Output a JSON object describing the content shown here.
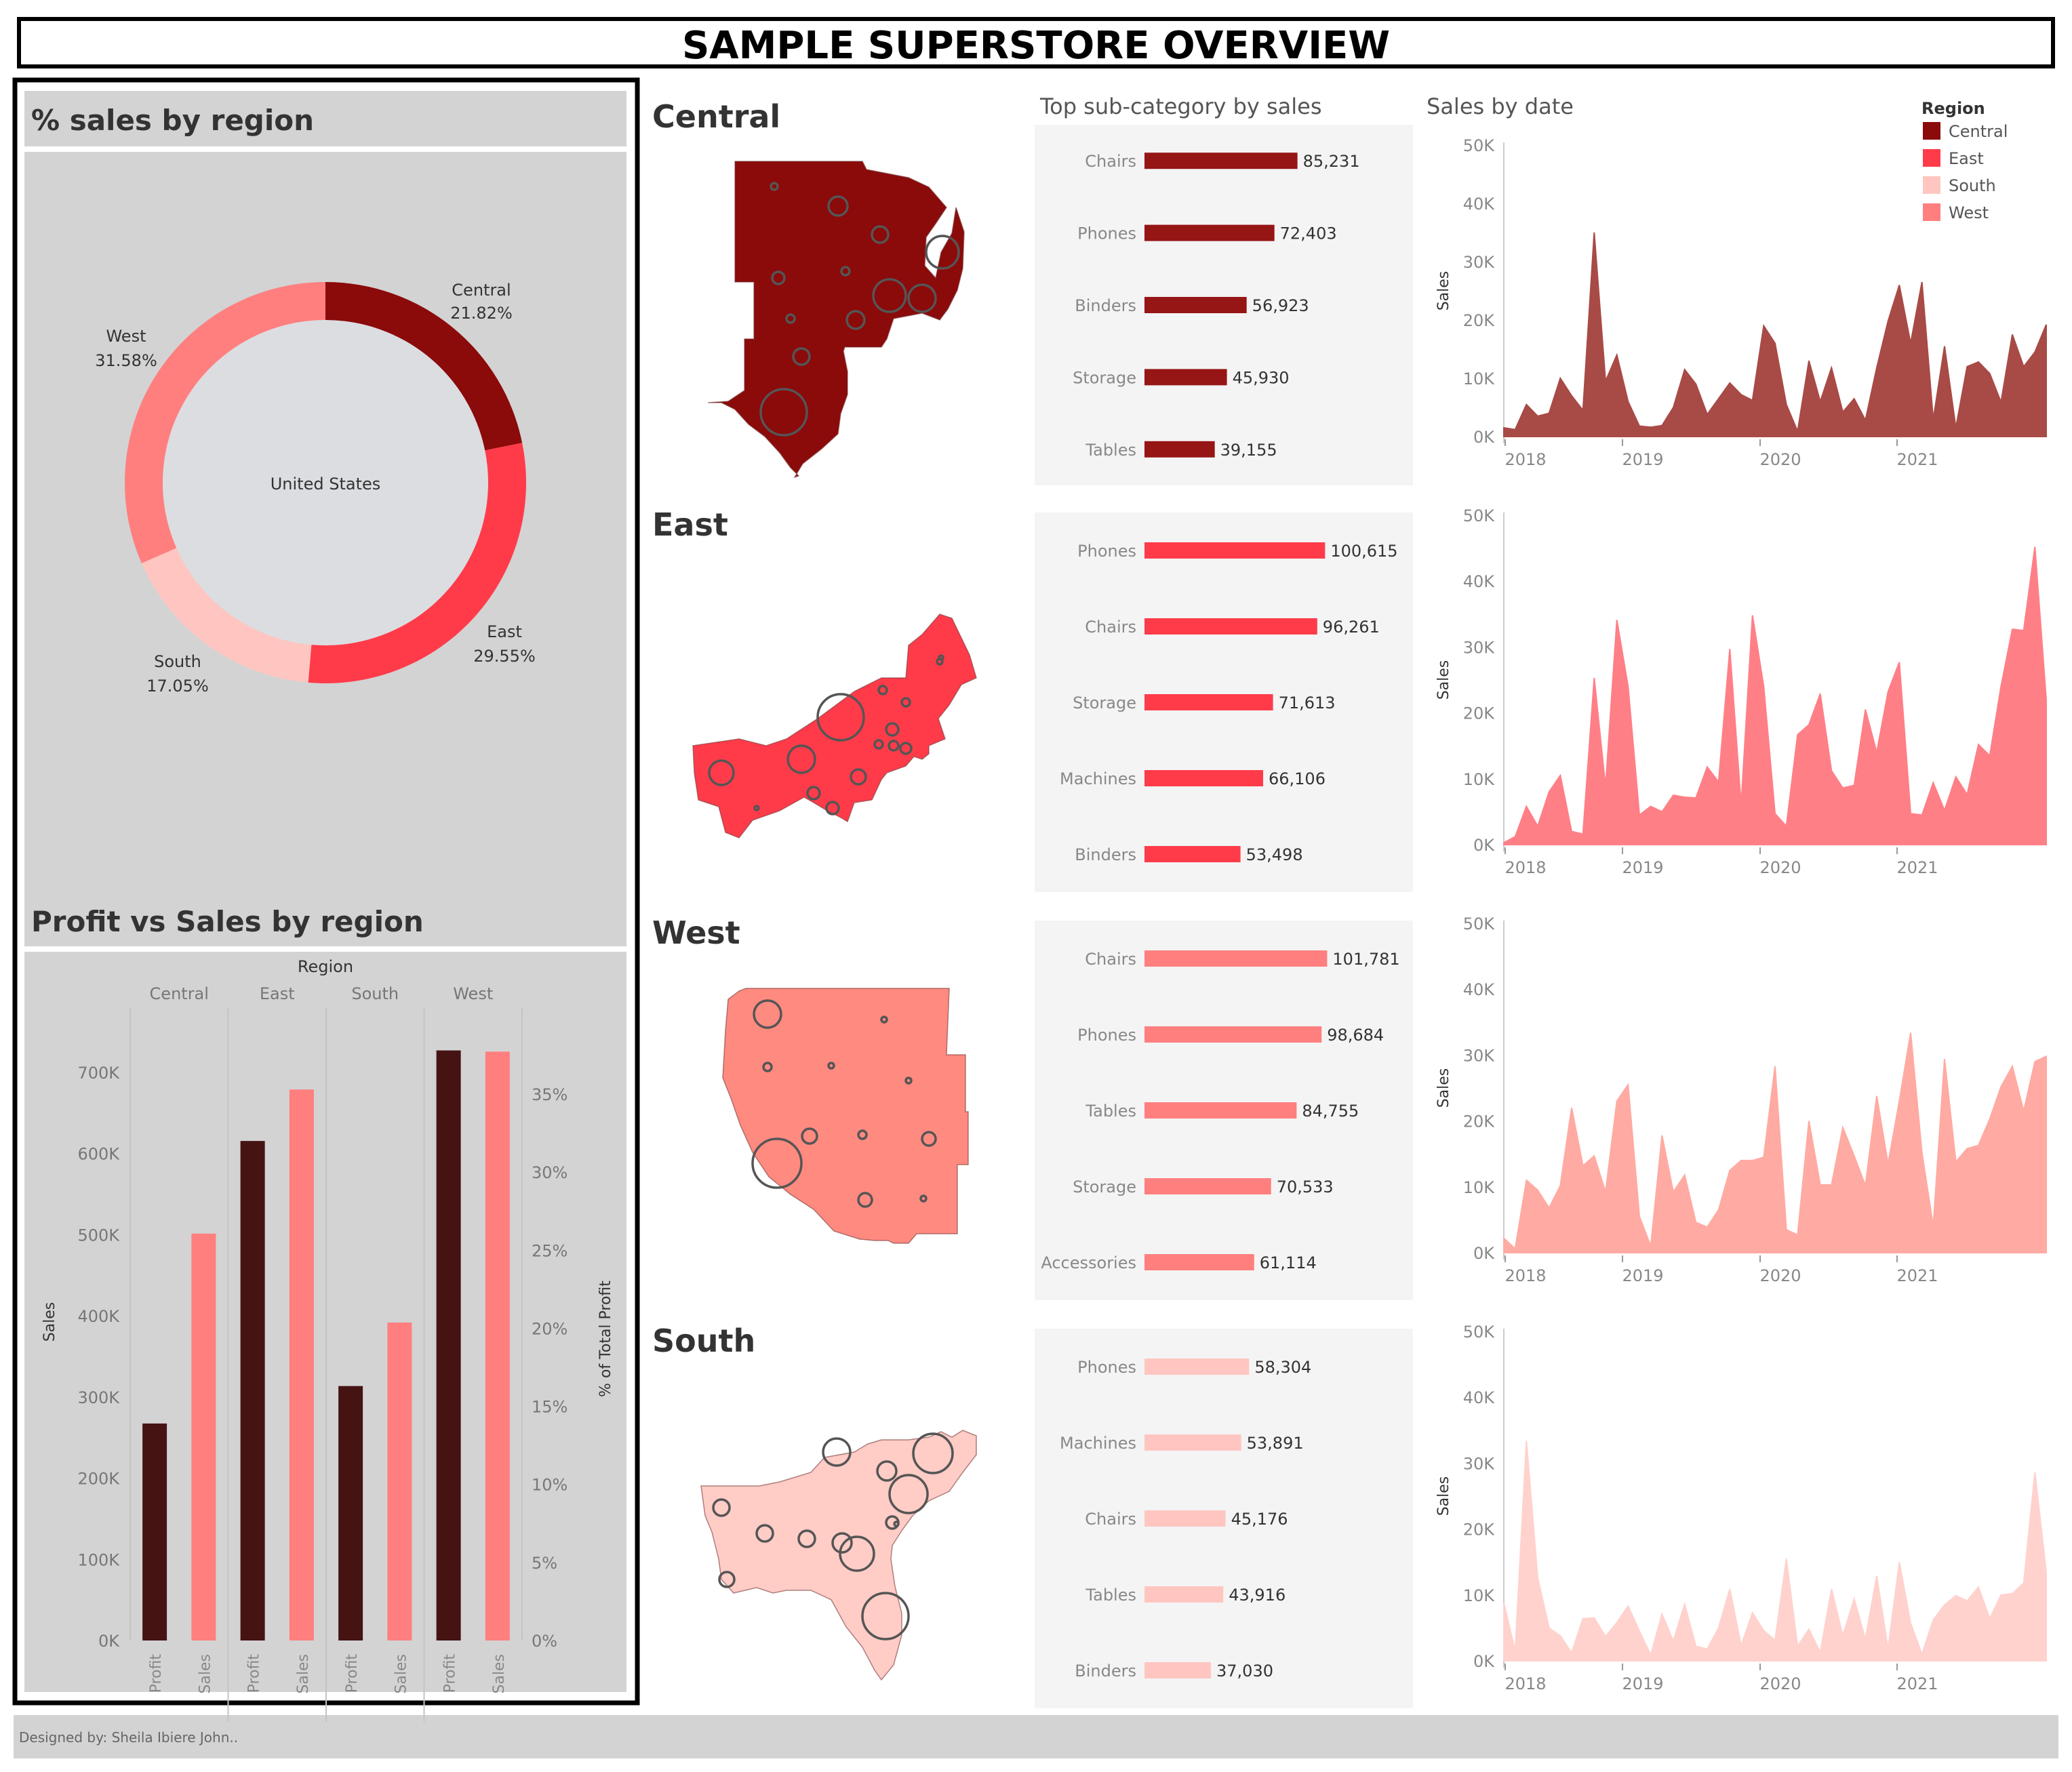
{
  "header": {
    "title": "SAMPLE SUPERSTORE OVERVIEW"
  },
  "footer": {
    "credit": "Designed by: Sheila Ibiere John.."
  },
  "colors": {
    "Central": "#8b0a0a",
    "East": "#ff3b4a",
    "South": "#ffc6c1",
    "West": "#ff7f7f",
    "profit_bar": "#461313",
    "sales_bar": "#ff7f7f"
  },
  "panels": {
    "donut_title": "% sales by region",
    "profit_sales_title": "Profit vs Sales by region",
    "sub_category_title": "Top sub-category by sales",
    "sales_by_date_title": "Sales by date"
  },
  "legend": {
    "title": "Region",
    "items": [
      "Central",
      "East",
      "South",
      "West"
    ]
  },
  "region_sections": [
    "Central",
    "East",
    "West",
    "South"
  ],
  "chart_data": [
    {
      "type": "pie",
      "title": "% sales by region",
      "center_label": "United States",
      "slices": [
        {
          "label": "Central",
          "value": 21.82,
          "display": "21.82%"
        },
        {
          "label": "East",
          "value": 29.55,
          "display": "29.55%"
        },
        {
          "label": "South",
          "value": 17.05,
          "display": "17.05%"
        },
        {
          "label": "West",
          "value": 31.58,
          "display": "31.58%"
        }
      ]
    },
    {
      "type": "bar",
      "title": "Profit vs Sales by region",
      "column_header": "Region",
      "categories": [
        "Central",
        "East",
        "South",
        "West"
      ],
      "measures": [
        "Profit",
        "Sales"
      ],
      "series": [
        {
          "name": "Profit",
          "axis": "right",
          "values": [
            13.9,
            32.0,
            16.3,
            37.8
          ]
        },
        {
          "name": "Sales",
          "axis": "left",
          "values": [
            501240,
            678781,
            391722,
            725458
          ]
        }
      ],
      "ylabel": "Sales",
      "y2label": "% of Total Profit",
      "ylim": [
        0,
        780000
      ],
      "y2lim": [
        0,
        40.56
      ],
      "yticks": [
        "0K",
        "100K",
        "200K",
        "300K",
        "400K",
        "500K",
        "600K",
        "700K"
      ],
      "y2ticks": [
        "0%",
        "5%",
        "10%",
        "15%",
        "20%",
        "25%",
        "30%",
        "35%"
      ]
    },
    {
      "type": "bar",
      "title": "Top sub-category by sales",
      "orientation": "horizontal",
      "regions": [
        {
          "region": "Central",
          "categories": [
            "Chairs",
            "Phones",
            "Binders",
            "Storage",
            "Tables"
          ],
          "values": [
            85231,
            72403,
            56923,
            45930,
            39155
          ],
          "labels": [
            "85,231",
            "72,403",
            "56,923",
            "45,930",
            "39,155"
          ]
        },
        {
          "region": "East",
          "categories": [
            "Phones",
            "Chairs",
            "Storage",
            "Machines",
            "Binders"
          ],
          "values": [
            100615,
            96261,
            71613,
            66106,
            53498
          ],
          "labels": [
            "100,615",
            "96,261",
            "71,613",
            "66,106",
            "53,498"
          ]
        },
        {
          "region": "West",
          "categories": [
            "Chairs",
            "Phones",
            "Tables",
            "Storage",
            "Accessories"
          ],
          "values": [
            101781,
            98684,
            84755,
            70533,
            61114
          ],
          "labels": [
            "101,781",
            "98,684",
            "84,755",
            "70,533",
            "61,114"
          ]
        },
        {
          "region": "South",
          "categories": [
            "Phones",
            "Machines",
            "Chairs",
            "Tables",
            "Binders"
          ],
          "values": [
            58304,
            53891,
            45176,
            43916,
            37030
          ],
          "labels": [
            "58,304",
            "53,891",
            "45,176",
            "43,916",
            "37,030"
          ]
        }
      ]
    },
    {
      "type": "area",
      "title": "Sales by date",
      "ylabel": "Sales",
      "x_ticks": [
        "2018",
        "2019",
        "2020",
        "2021"
      ],
      "y_ticks": [
        "0K",
        "10K",
        "20K",
        "30K",
        "40K",
        "50K"
      ],
      "ylim": [
        0,
        50000
      ],
      "x_start": "2017-01",
      "x_end": "2020-12",
      "series": [
        {
          "name": "Central",
          "values": [
            1500,
            1200,
            5500,
            3500,
            4000,
            10000,
            7000,
            4500,
            35000,
            9500,
            14000,
            6000,
            1800,
            1600,
            1900,
            5000,
            11500,
            9000,
            3800,
            6500,
            9200,
            7200,
            6200,
            19000,
            16000,
            5500,
            900,
            13000,
            6000,
            11800,
            4200,
            6500,
            2800,
            11800,
            19800,
            26000,
            16000,
            26500,
            2900,
            15500,
            1500,
            12000,
            12800,
            10800,
            5900,
            17500,
            12000,
            14500,
            19200
          ]
        },
        {
          "name": "East",
          "values": [
            300,
            1200,
            5800,
            2800,
            8000,
            10500,
            2000,
            1600,
            25300,
            8800,
            34100,
            24000,
            4500,
            5800,
            5000,
            7500,
            7200,
            7100,
            11800,
            9500,
            29700,
            6000,
            34800,
            24000,
            4700,
            2800,
            16700,
            18200,
            22900,
            11200,
            8600,
            9000,
            20500,
            14000,
            23200,
            27700,
            4700,
            4500,
            9400,
            5200,
            10300,
            7600,
            15200,
            13500,
            24000,
            32700,
            32500,
            45200,
            22000
          ]
        },
        {
          "name": "West",
          "values": [
            2200,
            600,
            11000,
            9500,
            6800,
            10200,
            22000,
            13200,
            14700,
            9200,
            23000,
            25500,
            5500,
            1000,
            17800,
            9200,
            11800,
            4600,
            3900,
            6500,
            12500,
            14000,
            14000,
            14500,
            28300,
            3500,
            2700,
            20000,
            10300,
            10300,
            19000,
            14700,
            10200,
            23800,
            13500,
            23000,
            33400,
            15200,
            4000,
            29400,
            13800,
            15800,
            16300,
            20300,
            25200,
            28300,
            21500,
            29000,
            29800
          ]
        },
        {
          "name": "South",
          "values": [
            8800,
            1500,
            33400,
            12600,
            5000,
            3800,
            1200,
            6400,
            6500,
            3700,
            5800,
            8300,
            4500,
            900,
            7100,
            3000,
            8600,
            2200,
            1800,
            5000,
            10900,
            2300,
            7300,
            4600,
            3100,
            15500,
            2200,
            4800,
            1300,
            10900,
            3800,
            9400,
            3300,
            12900,
            1800,
            15000,
            5700,
            1000,
            6200,
            8500,
            9900,
            9100,
            11200,
            6400,
            10000,
            10200,
            11800,
            28600,
            13500
          ]
        }
      ]
    }
  ]
}
